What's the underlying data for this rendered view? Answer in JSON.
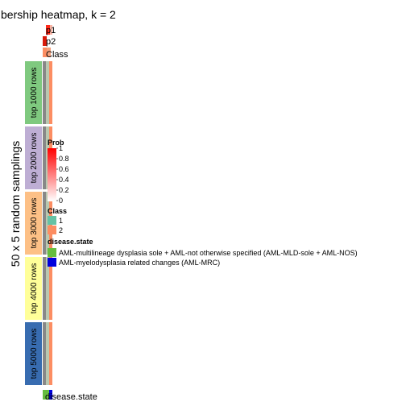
{
  "chart_data": {
    "type": "heatmap",
    "title": "bership heatmap, k = 2",
    "ylabel": "50 x 5 random samplings",
    "rows": [
      {
        "label": "p1",
        "values": [
          1,
          1,
          1,
          1,
          1
        ]
      },
      {
        "label": "p2",
        "values": [
          0,
          0,
          0,
          0,
          0
        ]
      },
      {
        "label": "Class",
        "values": [
          2,
          2,
          2,
          2,
          2
        ]
      }
    ],
    "row_groups": [
      {
        "label": "top 1000 rows",
        "color": "#7FC97F"
      },
      {
        "label": "top 2000 rows",
        "color": "#BEAED4"
      },
      {
        "label": "top 3000 rows",
        "color": "#FDC086"
      },
      {
        "label": "top 4000 rows",
        "color": "#FFFF99"
      },
      {
        "label": "top 5000 rows",
        "color": "#386CB0"
      }
    ],
    "column_annotation": {
      "label": "disease.state",
      "values": [
        "AML-multilineage dysplasia sole + AML-not otherwise specified (AML-MLD-sole + AML-NOS)",
        "AML-multilineage dysplasia sole + AML-not otherwise specified (AML-MLD-sole + AML-NOS)",
        "AML-myelodysplasia related changes (AML-MRC)"
      ]
    },
    "legends": [
      {
        "title": "Prob",
        "type": "continuous",
        "ticks": [
          "1",
          "0.8",
          "0.6",
          "0.4",
          "0.2",
          "0"
        ],
        "range": [
          0,
          1
        ],
        "colors": [
          "#FF0000",
          "#FFFFFF"
        ]
      },
      {
        "title": "Class",
        "type": "discrete",
        "items": [
          {
            "label": "1",
            "color": "#66C2A5"
          },
          {
            "label": "2",
            "color": "#FC8D62"
          }
        ]
      },
      {
        "title": "disease.state",
        "type": "discrete",
        "items": [
          {
            "label": "AML-multilineage dysplasia sole + AML-not otherwise specified (AML-MLD-sole + AML-NOS)",
            "color": "#66BD3F"
          },
          {
            "label": "AML-myelodysplasia related changes (AML-MRC)",
            "color": "#0000DD"
          }
        ]
      }
    ],
    "colors": {
      "p1": "#E8230F",
      "p2": "#F5B6A6",
      "class_1": "#66C2A5",
      "class_2": "#FC8D62",
      "panel_bg": "#888888",
      "strip_light": "#B9C8B0"
    }
  }
}
